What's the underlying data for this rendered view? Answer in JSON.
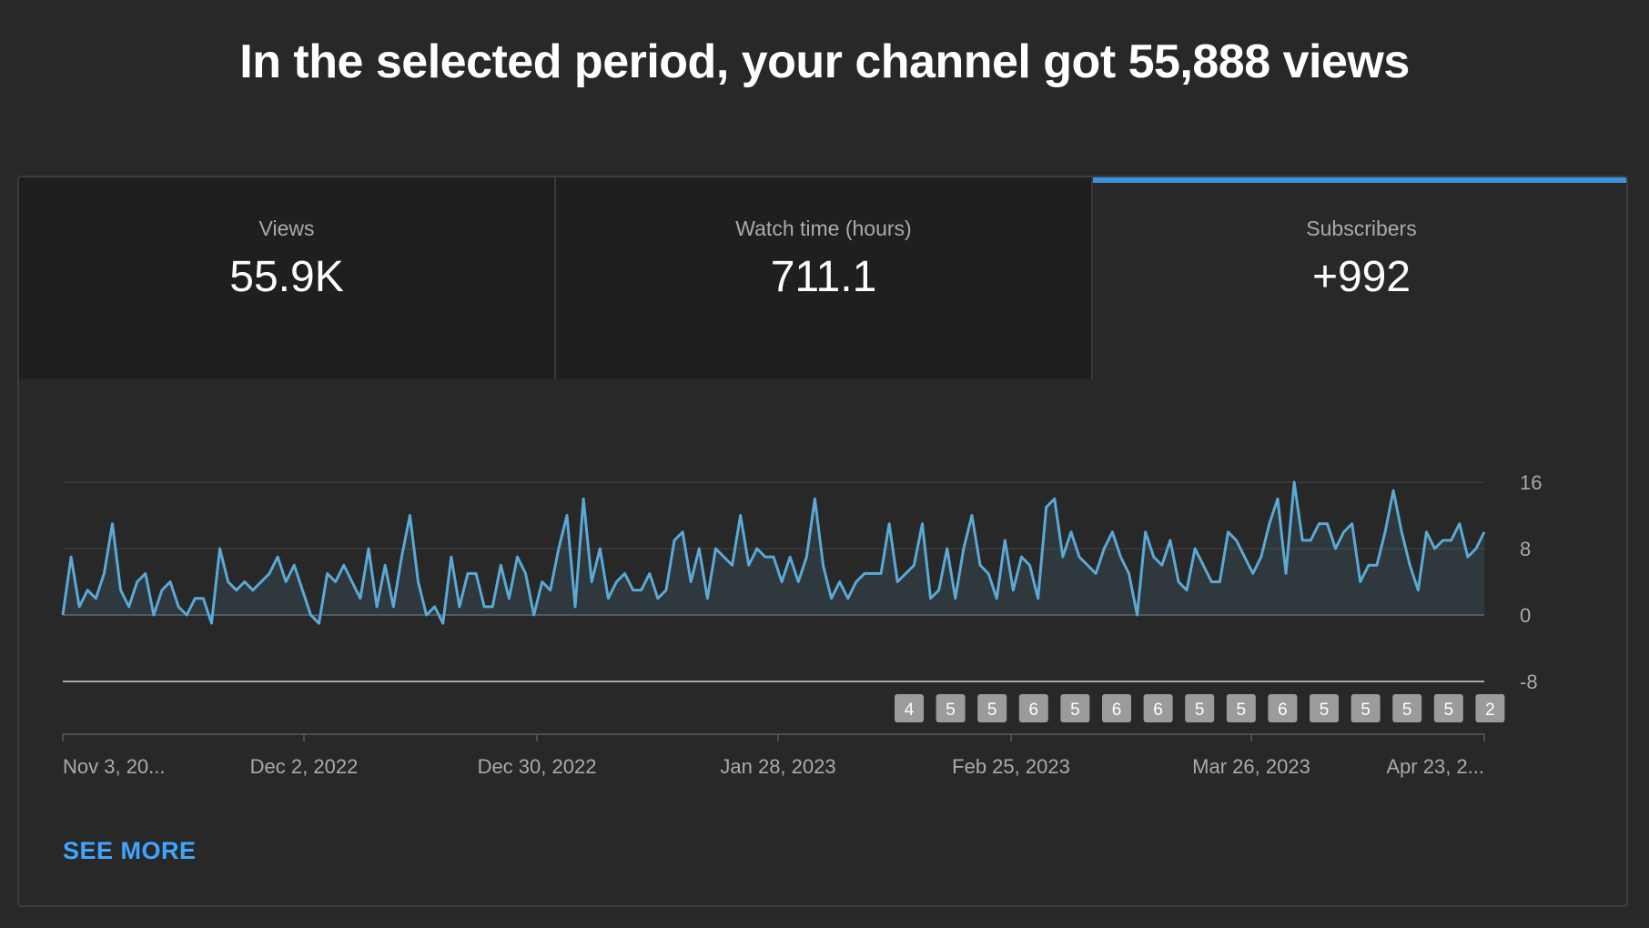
{
  "headline": "In the selected period, your channel got 55,888 views",
  "tabs": [
    {
      "label": "Views",
      "value": "55.9K",
      "active": false
    },
    {
      "label": "Watch time (hours)",
      "value": "711.1",
      "active": false
    },
    {
      "label": "Subscribers",
      "value": "+992",
      "active": true
    }
  ],
  "see_more_label": "SEE MORE",
  "colors": {
    "accent": "#3ea6ff",
    "line": "#5aa9d6",
    "background": "#282828"
  },
  "chart_data": {
    "type": "area",
    "ylim": [
      -8,
      16
    ],
    "yticks": [
      "16",
      "8",
      "0",
      "-8"
    ],
    "xticks": [
      "Nov 3, 20...",
      "Dec 2, 2022",
      "Dec 30, 2022",
      "Jan 28, 2023",
      "Feb 25, 2023",
      "Mar 26, 2023",
      "Apr 23, 2..."
    ],
    "values": [
      0,
      7,
      1,
      3,
      2,
      5,
      11,
      3,
      1,
      4,
      5,
      0,
      3,
      4,
      1,
      0,
      2,
      2,
      -1,
      8,
      4,
      3,
      4,
      3,
      4,
      5,
      7,
      4,
      6,
      3,
      0,
      -1,
      5,
      4,
      6,
      4,
      2,
      8,
      1,
      6,
      1,
      7,
      12,
      4,
      0,
      1,
      -1,
      7,
      1,
      5,
      5,
      1,
      1,
      6,
      2,
      7,
      5,
      0,
      4,
      3,
      8,
      12,
      1,
      14,
      4,
      8,
      2,
      4,
      5,
      3,
      3,
      5,
      2,
      3,
      9,
      10,
      4,
      8,
      2,
      8,
      7,
      6,
      12,
      6,
      8,
      7,
      7,
      4,
      7,
      4,
      7,
      14,
      6,
      2,
      4,
      2,
      4,
      5,
      5,
      5,
      11,
      4,
      5,
      6,
      11,
      2,
      3,
      8,
      2,
      8,
      12,
      6,
      5,
      2,
      9,
      3,
      7,
      6,
      2,
      13,
      14,
      7,
      10,
      7,
      6,
      5,
      8,
      10,
      7,
      5,
      0,
      10,
      7,
      6,
      9,
      4,
      3,
      8,
      6,
      4,
      4,
      10,
      9,
      7,
      5,
      7,
      11,
      14,
      5,
      16,
      9,
      9,
      11,
      11,
      8,
      10,
      11,
      4,
      6,
      6,
      10,
      15,
      10,
      6,
      3,
      10,
      8,
      9,
      9,
      11,
      7,
      8,
      10
    ],
    "markers": [
      "4",
      "5",
      "5",
      "6",
      "5",
      "6",
      "6",
      "5",
      "5",
      "6",
      "5",
      "5",
      "5",
      "5",
      "2"
    ]
  }
}
